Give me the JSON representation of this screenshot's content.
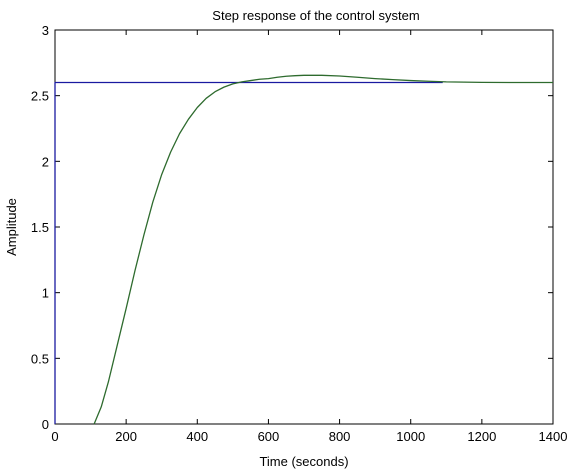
{
  "chart_data": {
    "type": "line",
    "title": "Step response of the control system",
    "xlabel": "Time (seconds)",
    "ylabel": "Amplitude",
    "xlim": [
      0,
      1400
    ],
    "ylim": [
      0,
      3
    ],
    "xticks": [
      0,
      200,
      400,
      600,
      800,
      1000,
      1200,
      1400
    ],
    "yticks": [
      0,
      0.5,
      1,
      1.5,
      2,
      2.5,
      3
    ],
    "xtick_labels": [
      "0",
      "200",
      "400",
      "600",
      "800",
      "1000",
      "1200",
      "1400"
    ],
    "ytick_labels": [
      "0",
      "0.5",
      "1",
      "1.5",
      "2",
      "2.5",
      "3"
    ],
    "grid": false,
    "series": [
      {
        "color": "#1a1aa0",
        "x": [
          0,
          0,
          1090
        ],
        "y": [
          0,
          2.6,
          2.6
        ]
      },
      {
        "color": "#2e6b2e",
        "x": [
          110,
          130,
          150,
          175,
          200,
          225,
          250,
          275,
          300,
          325,
          350,
          375,
          400,
          425,
          450,
          475,
          500,
          525,
          550,
          575,
          600,
          625,
          650,
          675,
          700,
          750,
          800,
          850,
          900,
          950,
          1000,
          1050,
          1100,
          1150,
          1200,
          1300,
          1400
        ],
        "y": [
          0,
          0.13,
          0.32,
          0.6,
          0.88,
          1.17,
          1.44,
          1.69,
          1.9,
          2.07,
          2.21,
          2.32,
          2.41,
          2.48,
          2.53,
          2.565,
          2.59,
          2.605,
          2.615,
          2.625,
          2.63,
          2.64,
          2.648,
          2.652,
          2.655,
          2.655,
          2.65,
          2.64,
          2.63,
          2.622,
          2.615,
          2.61,
          2.605,
          2.603,
          2.601,
          2.6,
          2.6
        ]
      }
    ]
  }
}
